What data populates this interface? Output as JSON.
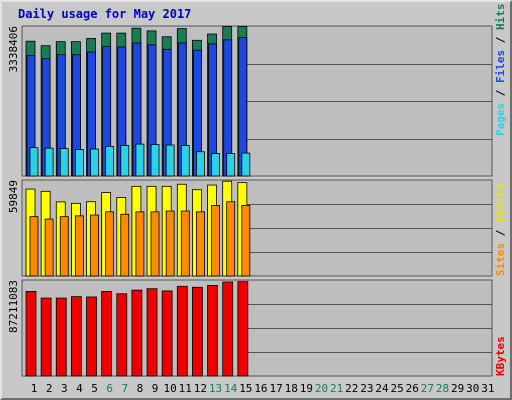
{
  "title": "Daily usage for May 2017",
  "chart_data": [
    {
      "type": "bar",
      "days": [
        1,
        2,
        3,
        4,
        5,
        6,
        7,
        8,
        9,
        10,
        11,
        12,
        13,
        14,
        15,
        16,
        17,
        18,
        19,
        20,
        21,
        22,
        23,
        24,
        25,
        26,
        27,
        28,
        29,
        30,
        31
      ],
      "weekend_days": [
        6,
        7,
        13,
        14,
        20,
        21,
        27,
        28
      ],
      "max_label": "3338406",
      "ylim": [
        0,
        3338406
      ],
      "series": [
        {
          "name": "Hits",
          "color": "#1a7c55",
          "values": [
            3000000,
            2900000,
            2990000,
            2990000,
            3060000,
            3180000,
            3180000,
            3290000,
            3230000,
            3100000,
            3280000,
            3020000,
            3160000,
            3330000,
            3330000
          ]
        },
        {
          "name": "Files",
          "color": "#1e48e0",
          "values": [
            2680000,
            2610000,
            2700000,
            2700000,
            2760000,
            2880000,
            2870000,
            2960000,
            2920000,
            2820000,
            2960000,
            2800000,
            2940000,
            3030000,
            3080000
          ]
        },
        {
          "name": "Pages",
          "color": "#2ad2e8",
          "values": [
            630000,
            620000,
            610000,
            590000,
            600000,
            660000,
            680000,
            710000,
            700000,
            690000,
            680000,
            540000,
            500000,
            500000,
            510000
          ]
        }
      ],
      "legend": {
        "pages": "Pages",
        "files": "Files",
        "hits": "Hits",
        "sep": "/"
      }
    },
    {
      "type": "bar",
      "max_label": "59849",
      "ylim": [
        0,
        59849
      ],
      "series": [
        {
          "name": "Visits",
          "color": "#ffff00",
          "values": [
            54200,
            52800,
            46200,
            45300,
            46300,
            52000,
            49000,
            55900,
            55900,
            55900,
            57200,
            53800,
            56700,
            59100,
            58200
          ]
        },
        {
          "name": "Sites",
          "color": "#ff8a00",
          "values": [
            37000,
            35500,
            37000,
            37500,
            38000,
            40000,
            38500,
            40000,
            40000,
            40500,
            40500,
            40000,
            44000,
            46300,
            44000
          ]
        }
      ],
      "legend": {
        "sites": "Sites",
        "visits": "Visits",
        "sep": "/"
      }
    },
    {
      "type": "bar",
      "max_label": "87211083",
      "ylim": [
        0,
        87211083
      ],
      "series": [
        {
          "name": "KBytes",
          "color": "#ee0000",
          "values": [
            76800000,
            70800000,
            70800000,
            72100000,
            71800000,
            76800000,
            74700000,
            78000000,
            79300000,
            77300000,
            81500000,
            80600000,
            82300000,
            85400000,
            85700000
          ]
        }
      ],
      "legend": {
        "kbytes": "KBytes"
      }
    }
  ]
}
